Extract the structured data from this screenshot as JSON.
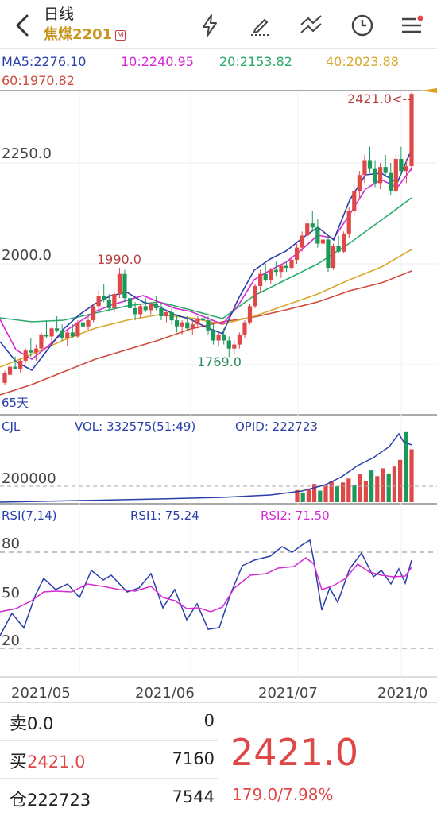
{
  "header": {
    "title": "日线",
    "symbol": "焦煤2201",
    "badge": "M",
    "icons": [
      "back-icon",
      "lightning-icon",
      "pen-icon",
      "trend-lines-icon",
      "clock-icon",
      "menu-icon"
    ]
  },
  "ma_legend": {
    "ma5": "MA5:2276.10",
    "ma10": "10:2240.95",
    "ma20": "20:2153.82",
    "ma40": "40:2023.88",
    "ma60": "60:1970.82",
    "colors": {
      "ma5": "#2a3fa8",
      "ma10": "#d42ad4",
      "ma20": "#2aaa6a",
      "ma40": "#d8a82a",
      "ma60": "#d04a3a"
    }
  },
  "price_panel": {
    "y_labels": [
      "2250.0",
      "2000.0"
    ],
    "annotations": {
      "high": "1990.0",
      "low": "1769.0",
      "last": "2421.0<--",
      "days": "65天"
    }
  },
  "volume_panel": {
    "label": "CJL",
    "vol": "VOL: 332575(51:49)",
    "opid": "OPID: 222723",
    "y_label": "200000"
  },
  "rsi_panel": {
    "label": "RSI(7,14)",
    "rsi1": "RSI1: 75.24",
    "rsi2": "RSI2: 71.50",
    "levels": [
      "80",
      "50",
      "20"
    ]
  },
  "x_axis": [
    "2021/05",
    "2021/06",
    "2021/07",
    "2021/0"
  ],
  "quote": {
    "sell_label": "卖",
    "sell_price": "0.0",
    "sell_qty": "0",
    "buy_label": "买",
    "buy_price": "2421.0",
    "buy_qty": "7160",
    "oi_label": "仓",
    "oi_value": "222723",
    "oi_qty": "7544",
    "last_price": "2421.0",
    "change": "179.0/7.98%"
  },
  "chart_data": {
    "type": "candlestick",
    "candles_ohlc": [
      [
        1705,
        1735,
        1700,
        1730
      ],
      [
        1725,
        1750,
        1715,
        1745
      ],
      [
        1745,
        1770,
        1738,
        1740
      ],
      [
        1740,
        1765,
        1730,
        1760
      ],
      [
        1760,
        1790,
        1755,
        1785
      ],
      [
        1785,
        1815,
        1770,
        1780
      ],
      [
        1780,
        1800,
        1760,
        1790
      ],
      [
        1790,
        1830,
        1785,
        1825
      ],
      [
        1825,
        1860,
        1815,
        1820
      ],
      [
        1820,
        1845,
        1800,
        1840
      ],
      [
        1840,
        1870,
        1830,
        1835
      ],
      [
        1835,
        1850,
        1810,
        1815
      ],
      [
        1815,
        1835,
        1795,
        1830
      ],
      [
        1830,
        1850,
        1815,
        1820
      ],
      [
        1820,
        1860,
        1815,
        1855
      ],
      [
        1855,
        1875,
        1840,
        1845
      ],
      [
        1845,
        1870,
        1835,
        1860
      ],
      [
        1860,
        1900,
        1855,
        1895
      ],
      [
        1895,
        1935,
        1880,
        1920
      ],
      [
        1920,
        1950,
        1905,
        1910
      ],
      [
        1910,
        1925,
        1885,
        1890
      ],
      [
        1890,
        1930,
        1880,
        1925
      ],
      [
        1925,
        1990,
        1915,
        1975
      ],
      [
        1975,
        1985,
        1905,
        1915
      ],
      [
        1915,
        1930,
        1880,
        1890
      ],
      [
        1890,
        1905,
        1860,
        1875
      ],
      [
        1875,
        1900,
        1865,
        1895
      ],
      [
        1895,
        1915,
        1880,
        1885
      ],
      [
        1885,
        1905,
        1875,
        1900
      ],
      [
        1900,
        1920,
        1885,
        1890
      ],
      [
        1890,
        1900,
        1860,
        1870
      ],
      [
        1870,
        1885,
        1855,
        1880
      ],
      [
        1880,
        1890,
        1850,
        1860
      ],
      [
        1860,
        1875,
        1830,
        1845
      ],
      [
        1845,
        1860,
        1825,
        1855
      ],
      [
        1855,
        1870,
        1835,
        1840
      ],
      [
        1840,
        1860,
        1825,
        1850
      ],
      [
        1850,
        1870,
        1840,
        1865
      ],
      [
        1865,
        1880,
        1850,
        1860
      ],
      [
        1860,
        1870,
        1825,
        1835
      ],
      [
        1835,
        1850,
        1800,
        1810
      ],
      [
        1810,
        1830,
        1795,
        1825
      ],
      [
        1825,
        1840,
        1800,
        1810
      ],
      [
        1810,
        1820,
        1769,
        1790
      ],
      [
        1790,
        1810,
        1775,
        1800
      ],
      [
        1800,
        1830,
        1790,
        1825
      ],
      [
        1825,
        1860,
        1815,
        1855
      ],
      [
        1855,
        1900,
        1850,
        1895
      ],
      [
        1895,
        1950,
        1890,
        1945
      ],
      [
        1945,
        1985,
        1930,
        1975
      ],
      [
        1975,
        2000,
        1955,
        1960
      ],
      [
        1960,
        1990,
        1950,
        1985
      ],
      [
        1985,
        2005,
        1970,
        1980
      ],
      [
        1980,
        2000,
        1965,
        1995
      ],
      [
        1995,
        2005,
        1980,
        1990
      ],
      [
        1990,
        2015,
        1985,
        2010
      ],
      [
        2010,
        2050,
        2000,
        2040
      ],
      [
        2040,
        2080,
        2030,
        2070
      ],
      [
        2070,
        2110,
        2060,
        2100
      ],
      [
        2100,
        2130,
        2080,
        2090
      ],
      [
        2090,
        2110,
        2040,
        2050
      ],
      [
        2050,
        2075,
        2030,
        2060
      ],
      [
        2060,
        2070,
        1980,
        1990
      ],
      [
        1990,
        2050,
        1985,
        2045
      ],
      [
        2045,
        2070,
        2025,
        2030
      ],
      [
        2030,
        2080,
        2025,
        2075
      ],
      [
        2075,
        2140,
        2065,
        2130
      ],
      [
        2130,
        2190,
        2120,
        2180
      ],
      [
        2180,
        2230,
        2160,
        2220
      ],
      [
        2220,
        2270,
        2200,
        2255
      ],
      [
        2255,
        2290,
        2225,
        2235
      ],
      [
        2235,
        2255,
        2190,
        2200
      ],
      [
        2200,
        2250,
        2185,
        2240
      ],
      [
        2240,
        2270,
        2215,
        2225
      ],
      [
        2225,
        2250,
        2170,
        2180
      ],
      [
        2180,
        2270,
        2175,
        2260
      ],
      [
        2260,
        2290,
        2220,
        2230
      ],
      [
        2230,
        2260,
        2200,
        2242
      ],
      [
        2242,
        2425,
        2230,
        2421
      ]
    ],
    "volume_bars": [
      40,
      32,
      45,
      60,
      38,
      55,
      70,
      52,
      65,
      78,
      58,
      92,
      70,
      105,
      86,
      112,
      95,
      118,
      140,
      232,
      175
    ]
  }
}
